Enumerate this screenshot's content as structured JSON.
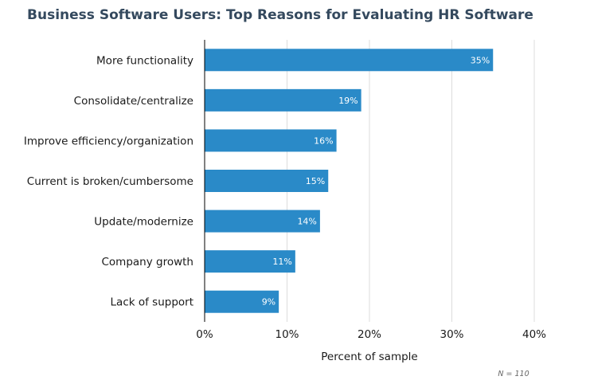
{
  "chart_data": {
    "type": "bar",
    "orientation": "horizontal",
    "title": "Business Software Users: Top Reasons for Evaluating HR Software",
    "categories": [
      "More functionality",
      "Consolidate/centralize",
      "Improve efficiency/organization",
      "Current is broken/cumbersome",
      "Update/modernize",
      "Company growth",
      "Lack of support"
    ],
    "values": [
      35,
      19,
      16,
      15,
      14,
      11,
      9
    ],
    "data_labels": [
      "35%",
      "19%",
      "16%",
      "15%",
      "14%",
      "11%",
      "9%"
    ],
    "xlabel": "Percent of sample",
    "ylabel": "",
    "xlim": [
      0,
      40
    ],
    "x_ticks": [
      0,
      10,
      20,
      30,
      40
    ],
    "x_tick_labels": [
      "0%",
      "10%",
      "20%",
      "30%",
      "40%"
    ],
    "grid": "vertical",
    "bar_color": "#2a8ac8",
    "note": "N = 110"
  }
}
